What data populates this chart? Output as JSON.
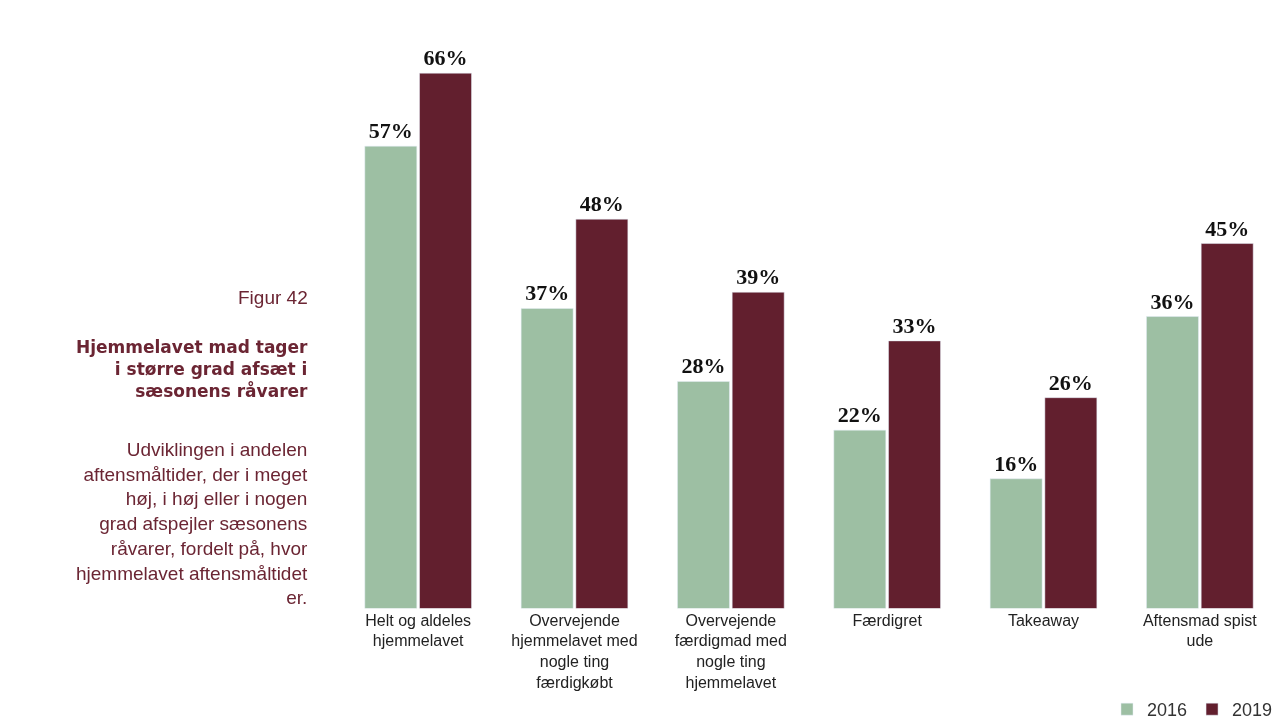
{
  "chart_data": {
    "type": "bar",
    "title": "Hjemmelavet mad tager i større grad afsæt i sæsonens råvarer",
    "annotations": [
      "Figur 42",
      "Udviklingen i andelen aftensmåltider, der i meget høj, i høj eller i nogen grad afspejler sæsonens råvarer, fordelt på, hvor hjemmelavet aftensmåltidet er."
    ],
    "categories": [
      "Helt og aldeles hjemmelavet",
      "Overvejende hjemmelavet med nogle ting færdigkøbt",
      "Overvejende færdigmad med nogle ting hjemmelavet",
      "Færdigret",
      "Takeaway",
      "Aftensmad spist ude"
    ],
    "series": [
      {
        "name": "2016",
        "color": "#9dbfa3",
        "values": [
          57,
          37,
          28,
          22,
          16,
          36
        ],
        "value_labels": [
          "57%",
          "37%",
          "28%",
          "22%",
          "16%",
          "36%"
        ]
      },
      {
        "name": "2019",
        "color": "#621f2e",
        "values": [
          66,
          48,
          39,
          33,
          26,
          45
        ],
        "value_labels": [
          "66%",
          "48%",
          "39%",
          "33%",
          "26%",
          "45%"
        ]
      }
    ],
    "legend": "bottom right"
  }
}
